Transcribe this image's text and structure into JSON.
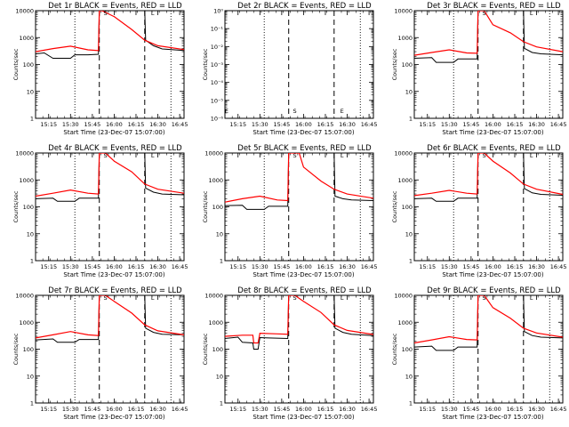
{
  "colors": {
    "events": "#000000",
    "lld": "#ff0000",
    "axis": "#000000"
  },
  "chart_data": [
    {
      "type": "line",
      "title": "Det 1r BLACK = Events, RED = LLD",
      "xlabel": "Start Time (23-Dec-07 15:07:00)",
      "ylabel": "Counts/sec",
      "xlim": [
        15.1,
        16.8
      ],
      "ylim": [
        1,
        10000
      ],
      "yscale": "log",
      "xticks": [
        15.25,
        15.5,
        15.75,
        16.0,
        16.25,
        16.5,
        16.75
      ],
      "xticklabels": [
        "15:15",
        "15:30",
        "15:45",
        "16:00",
        "16:15",
        "16:30",
        "16:45"
      ],
      "yticklabels": [
        "1",
        "10",
        "100",
        "1000",
        "10000"
      ],
      "dotted_x": [
        15.55,
        16.65
      ],
      "dashed_x": [
        15.83,
        16.35
      ],
      "markers": [
        {
          "x": 15.9,
          "label": "S"
        },
        {
          "x": 16.44,
          "label": "L"
        }
      ],
      "series": [
        {
          "name": "Events",
          "color": "#000000",
          "x": [
            15.1,
            15.2,
            15.3,
            15.4,
            15.5,
            15.55,
            15.6,
            15.7,
            15.82,
            15.83,
            15.86,
            16.35,
            16.36,
            16.45,
            16.55,
            16.8
          ],
          "y": [
            250,
            270,
            170,
            170,
            170,
            230,
            230,
            230,
            240,
            10000,
            10000,
            10000,
            800,
            500,
            380,
            330
          ]
        },
        {
          "name": "LLD",
          "color": "#ff0000",
          "x": [
            15.1,
            15.3,
            15.5,
            15.7,
            15.82,
            15.83,
            15.86,
            16.0,
            16.2,
            16.35,
            16.5,
            16.8
          ],
          "y": [
            300,
            390,
            480,
            350,
            330,
            10000,
            10000,
            6000,
            2000,
            800,
            500,
            360
          ]
        }
      ]
    },
    {
      "type": "line",
      "title": "Det 2r BLACK = Events, RED = LLD",
      "xlabel": "Start Time (23-Dec-07 15:07:00)",
      "ylabel": "Counts/sec",
      "xlim": [
        15.1,
        16.8
      ],
      "ylim": [
        1e-06,
        1
      ],
      "yscale": "log",
      "xticks": [
        15.25,
        15.5,
        15.75,
        16.0,
        16.25,
        16.5,
        16.75
      ],
      "xticklabels": [
        "15:15",
        "15:30",
        "15:45",
        "16:00",
        "16:15",
        "16:30",
        "16:45"
      ],
      "yticklabels": [
        "10⁻⁶",
        "10⁻⁵",
        "10⁻⁴",
        "10⁻³",
        "10⁻²",
        "10⁻¹",
        "10⁰"
      ],
      "dotted_x": [
        15.55,
        16.65
      ],
      "dashed_x": [
        15.83,
        16.35
      ],
      "markers": [
        {
          "x": 15.12,
          "label": "E"
        },
        {
          "x": 15.9,
          "label": "S"
        },
        {
          "x": 16.44,
          "label": "E"
        }
      ],
      "series": []
    },
    {
      "type": "line",
      "title": "Det 3r BLACK = Events, RED = LLD",
      "xlabel": "Start Time (23-Dec-07 15:07:00)",
      "ylabel": "Counts/sec",
      "xlim": [
        15.1,
        16.8
      ],
      "ylim": [
        1,
        10000
      ],
      "yscale": "log",
      "xticks": [
        15.25,
        15.5,
        15.75,
        16.0,
        16.25,
        16.5,
        16.75
      ],
      "xticklabels": [
        "15:15",
        "15:30",
        "15:45",
        "16:00",
        "16:15",
        "16:30",
        "16:45"
      ],
      "yticklabels": [
        "1",
        "10",
        "100",
        "1000",
        "10000"
      ],
      "dotted_x": [
        15.55,
        16.65
      ],
      "dashed_x": [
        15.83,
        16.35
      ],
      "markers": [
        {
          "x": 15.9,
          "label": "S"
        },
        {
          "x": 16.44,
          "label": "L"
        }
      ],
      "series": [
        {
          "name": "Events",
          "color": "#000000",
          "x": [
            15.1,
            15.3,
            15.35,
            15.55,
            15.6,
            15.82,
            15.83,
            15.86,
            16.35,
            16.36,
            16.45,
            16.55,
            16.8
          ],
          "y": [
            170,
            180,
            120,
            120,
            160,
            160,
            10000,
            10000,
            10000,
            400,
            280,
            250,
            230
          ]
        },
        {
          "name": "LLD",
          "color": "#ff0000",
          "x": [
            15.1,
            15.3,
            15.5,
            15.7,
            15.82,
            15.83,
            15.9,
            16.0,
            16.2,
            16.35,
            16.5,
            16.8
          ],
          "y": [
            220,
            280,
            350,
            270,
            260,
            10000,
            10000,
            3000,
            1500,
            700,
            450,
            300
          ]
        }
      ]
    },
    {
      "type": "line",
      "title": "Det 4r BLACK = Events, RED = LLD",
      "xlabel": "Start Time (23-Dec-07 15:07:00)",
      "ylabel": "Counts/sec",
      "xlim": [
        15.1,
        16.8
      ],
      "ylim": [
        1,
        10000
      ],
      "yscale": "log",
      "xticks": [
        15.25,
        15.5,
        15.75,
        16.0,
        16.25,
        16.5,
        16.75
      ],
      "xticklabels": [
        "15:15",
        "15:30",
        "15:45",
        "16:00",
        "16:15",
        "16:30",
        "16:45"
      ],
      "yticklabels": [
        "1",
        "10",
        "100",
        "1000",
        "10000"
      ],
      "dotted_x": [
        15.55,
        16.65
      ],
      "dashed_x": [
        15.83,
        16.35
      ],
      "markers": [
        {
          "x": 15.9,
          "label": "S"
        },
        {
          "x": 16.44,
          "label": "L"
        }
      ],
      "series": [
        {
          "name": "Events",
          "color": "#000000",
          "x": [
            15.1,
            15.3,
            15.35,
            15.55,
            15.6,
            15.82,
            15.83,
            15.86,
            16.35,
            16.36,
            16.45,
            16.55,
            16.8
          ],
          "y": [
            200,
            210,
            160,
            160,
            210,
            210,
            10000,
            10000,
            10000,
            500,
            350,
            300,
            280
          ]
        },
        {
          "name": "LLD",
          "color": "#ff0000",
          "x": [
            15.1,
            15.3,
            15.5,
            15.7,
            15.82,
            15.83,
            15.9,
            16.0,
            16.2,
            16.35,
            16.5,
            16.8
          ],
          "y": [
            250,
            320,
            420,
            320,
            300,
            10000,
            10000,
            5000,
            2000,
            700,
            450,
            320
          ]
        }
      ]
    },
    {
      "type": "line",
      "title": "Det 5r BLACK = Events, RED = LLD",
      "xlabel": "Start Time (23-Dec-07 15:07:00)",
      "ylabel": "Counts/sec",
      "xlim": [
        15.1,
        16.8
      ],
      "ylim": [
        1,
        10000
      ],
      "yscale": "log",
      "xticks": [
        15.25,
        15.5,
        15.75,
        16.0,
        16.25,
        16.5,
        16.75
      ],
      "xticklabels": [
        "15:15",
        "15:30",
        "15:45",
        "16:00",
        "16:15",
        "16:30",
        "16:45"
      ],
      "yticklabels": [
        "1",
        "10",
        "100",
        "1000",
        "10000"
      ],
      "dotted_x": [
        15.55,
        16.65
      ],
      "dashed_x": [
        15.83,
        16.35
      ],
      "markers": [
        {
          "x": 15.9,
          "label": "S"
        },
        {
          "x": 16.44,
          "label": "L"
        }
      ],
      "series": [
        {
          "name": "Events",
          "color": "#000000",
          "x": [
            15.1,
            15.3,
            15.35,
            15.55,
            15.6,
            15.82,
            15.83,
            15.86,
            16.35,
            16.36,
            16.45,
            16.55,
            16.8
          ],
          "y": [
            110,
            115,
            80,
            80,
            105,
            105,
            10000,
            10000,
            10000,
            250,
            200,
            180,
            170
          ]
        },
        {
          "name": "LLD",
          "color": "#ff0000",
          "x": [
            15.1,
            15.3,
            15.5,
            15.7,
            15.82,
            15.83,
            15.95,
            16.0,
            16.2,
            16.35,
            16.5,
            16.8
          ],
          "y": [
            150,
            200,
            250,
            180,
            170,
            10000,
            10000,
            3000,
            900,
            450,
            300,
            210
          ]
        }
      ]
    },
    {
      "type": "line",
      "title": "Det 6r BLACK = Events, RED = LLD",
      "xlabel": "Start Time (23-Dec-07 15:07:00)",
      "ylabel": "Counts/sec",
      "xlim": [
        15.1,
        16.8
      ],
      "ylim": [
        1,
        10000
      ],
      "yscale": "log",
      "xticks": [
        15.25,
        15.5,
        15.75,
        16.0,
        16.25,
        16.5,
        16.75
      ],
      "xticklabels": [
        "15:15",
        "15:30",
        "15:45",
        "16:00",
        "16:15",
        "16:30",
        "16:45"
      ],
      "yticklabels": [
        "1",
        "10",
        "100",
        "1000",
        "10000"
      ],
      "dotted_x": [
        15.55,
        16.65
      ],
      "dashed_x": [
        15.83,
        16.35
      ],
      "markers": [
        {
          "x": 15.9,
          "label": "S"
        },
        {
          "x": 16.44,
          "label": "L"
        }
      ],
      "series": [
        {
          "name": "Events",
          "color": "#000000",
          "x": [
            15.1,
            15.3,
            15.35,
            15.55,
            15.6,
            15.82,
            15.83,
            15.86,
            16.35,
            16.36,
            16.45,
            16.55,
            16.8
          ],
          "y": [
            200,
            210,
            160,
            160,
            210,
            210,
            10000,
            10000,
            10000,
            480,
            330,
            290,
            270
          ]
        },
        {
          "name": "LLD",
          "color": "#ff0000",
          "x": [
            15.1,
            15.3,
            15.5,
            15.7,
            15.82,
            15.83,
            15.9,
            16.0,
            16.2,
            16.35,
            16.5,
            16.8
          ],
          "y": [
            260,
            320,
            410,
            320,
            300,
            10000,
            10000,
            5000,
            1800,
            700,
            450,
            290
          ]
        }
      ]
    },
    {
      "type": "line",
      "title": "Det 7r BLACK = Events, RED = LLD",
      "xlabel": "Start Time (23-Dec-07 15:07:00)",
      "ylabel": "Counts/sec",
      "xlim": [
        15.1,
        16.8
      ],
      "ylim": [
        1,
        10000
      ],
      "yscale": "log",
      "xticks": [
        15.25,
        15.5,
        15.75,
        16.0,
        16.25,
        16.5,
        16.75
      ],
      "xticklabels": [
        "15:15",
        "15:30",
        "15:45",
        "16:00",
        "16:15",
        "16:30",
        "16:45"
      ],
      "yticklabels": [
        "1",
        "10",
        "100",
        "1000",
        "10000"
      ],
      "dotted_x": [
        15.55,
        16.65
      ],
      "dashed_x": [
        15.83,
        16.35
      ],
      "markers": [
        {
          "x": 15.9,
          "label": "S"
        },
        {
          "x": 16.44,
          "label": "L"
        }
      ],
      "series": [
        {
          "name": "Events",
          "color": "#000000",
          "x": [
            15.1,
            15.3,
            15.35,
            15.55,
            15.6,
            15.82,
            15.83,
            15.86,
            16.35,
            16.36,
            16.45,
            16.55,
            16.8
          ],
          "y": [
            220,
            240,
            180,
            180,
            230,
            230,
            10000,
            10000,
            10000,
            600,
            420,
            360,
            340
          ]
        },
        {
          "name": "LLD",
          "color": "#ff0000",
          "x": [
            15.1,
            15.3,
            15.5,
            15.7,
            15.82,
            15.83,
            15.9,
            16.0,
            16.2,
            16.35,
            16.5,
            16.8
          ],
          "y": [
            260,
            340,
            450,
            340,
            320,
            10000,
            10000,
            6000,
            2200,
            800,
            480,
            340
          ]
        }
      ]
    },
    {
      "type": "line",
      "title": "Det 8r BLACK = Events, RED = LLD",
      "xlabel": "Start Time (23-Dec-07 15:07:00)",
      "ylabel": "Counts/sec",
      "xlim": [
        15.1,
        16.8
      ],
      "ylim": [
        1,
        10000
      ],
      "yscale": "log",
      "xticks": [
        15.25,
        15.5,
        15.75,
        16.0,
        16.25,
        16.5,
        16.75
      ],
      "xticklabels": [
        "15:15",
        "15:30",
        "15:45",
        "16:00",
        "16:15",
        "16:30",
        "16:45"
      ],
      "yticklabels": [
        "1",
        "10",
        "100",
        "1000",
        "10000"
      ],
      "dotted_x": [
        15.55,
        16.65
      ],
      "dashed_x": [
        15.83,
        16.35
      ],
      "markers": [
        {
          "x": 15.9,
          "label": "S"
        },
        {
          "x": 16.44,
          "label": "L"
        }
      ],
      "series": [
        {
          "name": "Events",
          "color": "#000000",
          "x": [
            15.1,
            15.25,
            15.3,
            15.42,
            15.43,
            15.48,
            15.5,
            15.6,
            15.82,
            15.83,
            15.86,
            16.35,
            16.36,
            16.45,
            16.55,
            16.8
          ],
          "y": [
            250,
            280,
            180,
            170,
            100,
            100,
            270,
            260,
            250,
            10000,
            10000,
            10000,
            600,
            420,
            360,
            320
          ]
        },
        {
          "name": "LLD",
          "color": "#ff0000",
          "x": [
            15.1,
            15.3,
            15.42,
            15.43,
            15.48,
            15.5,
            15.7,
            15.82,
            15.83,
            15.9,
            16.0,
            16.2,
            16.35,
            16.5,
            16.8
          ],
          "y": [
            300,
            330,
            330,
            170,
            170,
            390,
            370,
            360,
            10000,
            10000,
            6000,
            2300,
            800,
            500,
            350
          ]
        }
      ]
    },
    {
      "type": "line",
      "title": "Det 9r BLACK = Events, RED = LLD",
      "xlabel": "Start Time (23-Dec-07 15:07:00)",
      "ylabel": "Counts/sec",
      "xlim": [
        15.1,
        16.8
      ],
      "ylim": [
        1,
        10000
      ],
      "yscale": "log",
      "xticks": [
        15.25,
        15.5,
        15.75,
        16.0,
        16.25,
        16.5,
        16.75
      ],
      "xticklabels": [
        "15:15",
        "15:30",
        "15:45",
        "16:00",
        "16:15",
        "16:30",
        "16:45"
      ],
      "yticklabels": [
        "1",
        "10",
        "100",
        "1000",
        "10000"
      ],
      "dotted_x": [
        15.55,
        16.65
      ],
      "dashed_x": [
        15.83,
        16.35
      ],
      "markers": [
        {
          "x": 15.9,
          "label": "S"
        },
        {
          "x": 16.44,
          "label": "L"
        }
      ],
      "series": [
        {
          "name": "Events",
          "color": "#000000",
          "x": [
            15.1,
            15.3,
            15.35,
            15.55,
            15.6,
            15.82,
            15.83,
            15.86,
            16.35,
            16.36,
            16.45,
            16.55,
            16.8
          ],
          "y": [
            120,
            130,
            90,
            90,
            120,
            120,
            10000,
            10000,
            10000,
            450,
            320,
            280,
            260
          ]
        },
        {
          "name": "LLD",
          "color": "#ff0000",
          "x": [
            15.1,
            15.3,
            15.5,
            15.7,
            15.82,
            15.83,
            15.9,
            16.0,
            16.2,
            16.35,
            16.5,
            16.8
          ],
          "y": [
            170,
            220,
            290,
            230,
            220,
            10000,
            10000,
            3500,
            1400,
            600,
            400,
            280
          ]
        }
      ]
    }
  ]
}
